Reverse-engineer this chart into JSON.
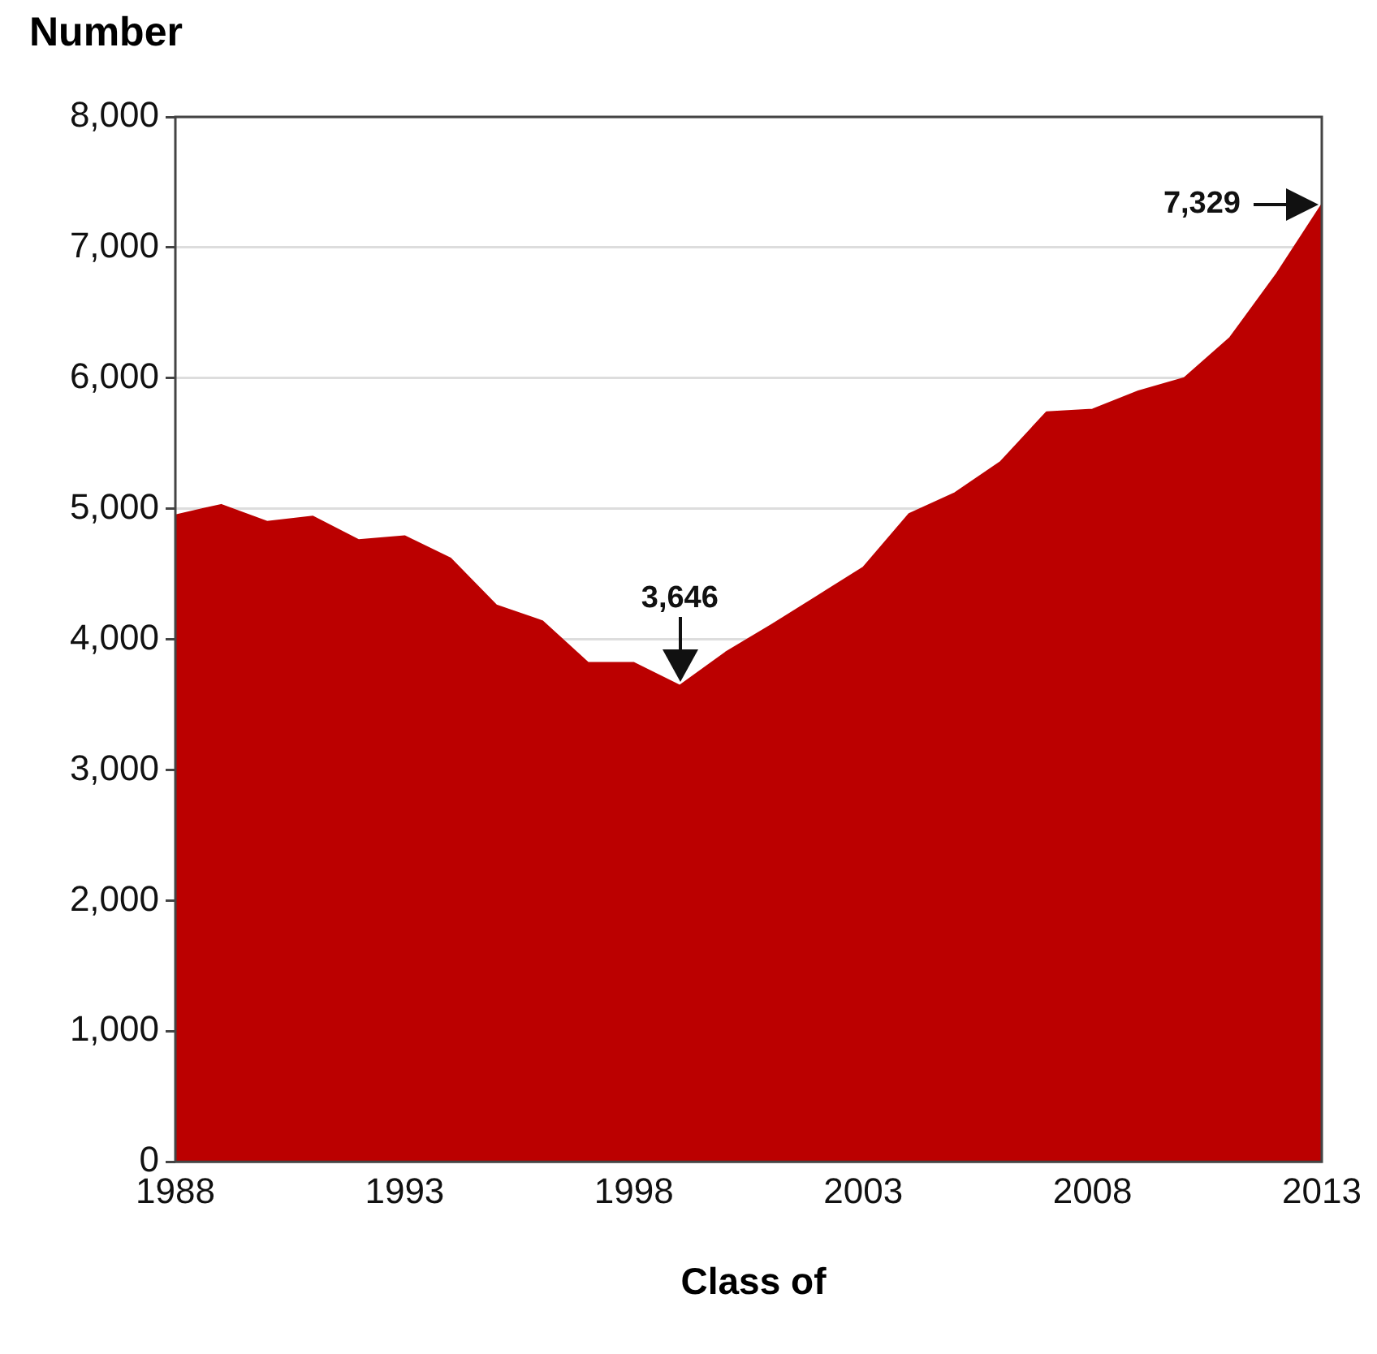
{
  "chart_data": {
    "type": "area",
    "xlabel": "Class of",
    "ylabel": "Number",
    "x": [
      1988,
      1989,
      1990,
      1991,
      1992,
      1993,
      1994,
      1995,
      1996,
      1997,
      1998,
      1999,
      2000,
      2001,
      2002,
      2003,
      2004,
      2005,
      2006,
      2007,
      2008,
      2009,
      2010,
      2011,
      2012,
      2013
    ],
    "series": [
      {
        "color": "#bb0000",
        "values": [
          4950,
          5030,
          4900,
          4940,
          4760,
          4790,
          4620,
          4260,
          4140,
          3820,
          3820,
          3646,
          3900,
          4110,
          4330,
          4550,
          4960,
          5120,
          5360,
          5740,
          5760,
          5900,
          6000,
          6310,
          6790,
          7329
        ]
      }
    ],
    "xlim": [
      1988,
      2013
    ],
    "xticks": [
      1988,
      1993,
      1998,
      2003,
      2008,
      2013
    ],
    "ylim": [
      0,
      8000
    ],
    "yticks": [
      0,
      {
        "value": 1000,
        "label": "1,000"
      },
      {
        "value": 2000,
        "label": "2,000"
      },
      {
        "value": 3000,
        "label": "3,000"
      },
      {
        "value": 4000,
        "label": "4,000"
      },
      {
        "value": 5000,
        "label": "5,000"
      },
      {
        "value": 6000,
        "label": "6,000"
      },
      {
        "value": 7000,
        "label": "7,000"
      },
      {
        "value": 8000,
        "label": "8,000"
      }
    ],
    "grid": "y",
    "legend": false,
    "annotations": [
      {
        "text": "3,646",
        "x": 1999,
        "y": 3646
      },
      {
        "text": "7,329",
        "x": 2013,
        "y": 7329
      }
    ]
  }
}
